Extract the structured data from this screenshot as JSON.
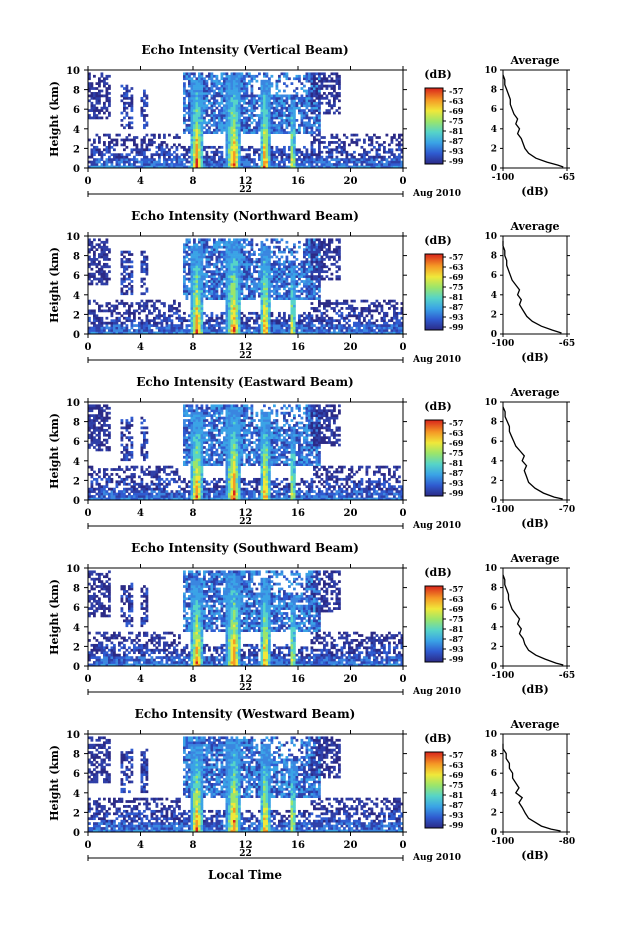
{
  "figure": {
    "xaxis_title": "Local Time",
    "date_label": "Aug 2010"
  },
  "chart_data": [
    {
      "type": "heatmap",
      "title": "Echo Intensity (Vertical Beam)",
      "ylabel": "Height (km)",
      "xlabel": "Local Time",
      "xlim": [
        0,
        24
      ],
      "ylim": [
        0,
        10
      ],
      "xticks": [
        "0",
        "4",
        "8",
        "12",
        "16",
        "20",
        "0"
      ],
      "yticks": [
        "0",
        "2",
        "4",
        "6",
        "8",
        "10"
      ],
      "day_label": "22",
      "colorbar": {
        "unit": "(dB)",
        "ticks": [
          "-57",
          "-63",
          "-69",
          "-75",
          "-81",
          "-87",
          "-93",
          "-99"
        ]
      },
      "profile": {
        "title": "Average",
        "xlabel": "(dB)",
        "xlim": [
          -100,
          -65
        ],
        "xticks": [
          "-100",
          "-65"
        ],
        "points": [
          [
            -67,
            0.1
          ],
          [
            -70,
            0.3
          ],
          [
            -76,
            0.6
          ],
          [
            -82,
            1.0
          ],
          [
            -86,
            1.5
          ],
          [
            -88,
            2.0
          ],
          [
            -89,
            2.5
          ],
          [
            -90,
            3.0
          ],
          [
            -92,
            3.5
          ],
          [
            -91,
            4.0
          ],
          [
            -93,
            4.5
          ],
          [
            -92,
            5.0
          ],
          [
            -94,
            5.5
          ],
          [
            -95,
            6.0
          ],
          [
            -96,
            6.5
          ],
          [
            -96,
            7.0
          ],
          [
            -97,
            7.5
          ],
          [
            -98,
            8.0
          ],
          [
            -99,
            8.5
          ],
          [
            -99,
            9.0
          ],
          [
            -100,
            9.5
          ]
        ]
      }
    },
    {
      "type": "heatmap",
      "title": "Echo Intensity (Northward Beam)",
      "ylabel": "Height (km)",
      "xlabel": "Local Time",
      "xlim": [
        0,
        24
      ],
      "ylim": [
        0,
        10
      ],
      "xticks": [
        "0",
        "4",
        "8",
        "12",
        "16",
        "20",
        "0"
      ],
      "yticks": [
        "0",
        "2",
        "4",
        "6",
        "8",
        "10"
      ],
      "day_label": "22",
      "colorbar": {
        "unit": "(dB)",
        "ticks": [
          "-57",
          "-63",
          "-69",
          "-75",
          "-81",
          "-87",
          "-93",
          "-99"
        ]
      },
      "profile": {
        "title": "Average",
        "xlabel": "(dB)",
        "xlim": [
          -100,
          -65
        ],
        "xticks": [
          "-100",
          "-65"
        ],
        "points": [
          [
            -68,
            0.1
          ],
          [
            -73,
            0.4
          ],
          [
            -79,
            0.8
          ],
          [
            -84,
            1.3
          ],
          [
            -87,
            1.8
          ],
          [
            -89,
            2.4
          ],
          [
            -91,
            3.0
          ],
          [
            -90,
            3.5
          ],
          [
            -92,
            4.0
          ],
          [
            -91,
            4.5
          ],
          [
            -93,
            5.0
          ],
          [
            -95,
            5.5
          ],
          [
            -96,
            6.0
          ],
          [
            -97,
            6.5
          ],
          [
            -98,
            7.0
          ],
          [
            -98,
            7.5
          ],
          [
            -99,
            8.0
          ],
          [
            -99,
            8.5
          ],
          [
            -100,
            9.0
          ],
          [
            -100,
            9.5
          ]
        ]
      }
    },
    {
      "type": "heatmap",
      "title": "Echo Intensity (Eastward Beam)",
      "ylabel": "Height (km)",
      "xlabel": "Local Time",
      "xlim": [
        0,
        24
      ],
      "ylim": [
        0,
        10
      ],
      "xticks": [
        "0",
        "4",
        "8",
        "12",
        "16",
        "20",
        "0"
      ],
      "yticks": [
        "0",
        "2",
        "4",
        "6",
        "8",
        "10"
      ],
      "day_label": "22",
      "colorbar": {
        "unit": "(dB)",
        "ticks": [
          "-57",
          "-63",
          "-69",
          "-75",
          "-81",
          "-87",
          "-93",
          "-99"
        ]
      },
      "profile": {
        "title": "Average",
        "xlabel": "(dB)",
        "xlim": [
          -100,
          -70
        ],
        "xticks": [
          "-100",
          "-70"
        ],
        "points": [
          [
            -72,
            0.1
          ],
          [
            -76,
            0.3
          ],
          [
            -81,
            0.7
          ],
          [
            -85,
            1.2
          ],
          [
            -88,
            1.8
          ],
          [
            -89,
            2.4
          ],
          [
            -90,
            3.0
          ],
          [
            -89,
            3.5
          ],
          [
            -91,
            4.0
          ],
          [
            -90,
            4.5
          ],
          [
            -92,
            5.0
          ],
          [
            -94,
            5.5
          ],
          [
            -95,
            6.0
          ],
          [
            -96,
            6.5
          ],
          [
            -97,
            7.0
          ],
          [
            -97,
            7.5
          ],
          [
            -98,
            8.0
          ],
          [
            -99,
            8.5
          ],
          [
            -99,
            9.0
          ],
          [
            -100,
            9.5
          ]
        ]
      }
    },
    {
      "type": "heatmap",
      "title": "Echo Intensity (Southward Beam)",
      "ylabel": "Height (km)",
      "xlabel": "Local Time",
      "xlim": [
        0,
        24
      ],
      "ylim": [
        0,
        10
      ],
      "xticks": [
        "0",
        "4",
        "8",
        "12",
        "16",
        "20",
        "0"
      ],
      "yticks": [
        "0",
        "2",
        "4",
        "6",
        "8",
        "10"
      ],
      "day_label": "22",
      "colorbar": {
        "unit": "(dB)",
        "ticks": [
          "-57",
          "-63",
          "-69",
          "-75",
          "-81",
          "-87",
          "-93",
          "-99"
        ]
      },
      "profile": {
        "title": "Average",
        "xlabel": "(dB)",
        "xlim": [
          -100,
          -65
        ],
        "xticks": [
          "-100",
          "-65"
        ],
        "points": [
          [
            -67,
            0.1
          ],
          [
            -71,
            0.3
          ],
          [
            -77,
            0.7
          ],
          [
            -82,
            1.1
          ],
          [
            -86,
            1.6
          ],
          [
            -88,
            2.2
          ],
          [
            -89,
            2.8
          ],
          [
            -91,
            3.3
          ],
          [
            -90,
            3.8
          ],
          [
            -92,
            4.3
          ],
          [
            -91,
            4.8
          ],
          [
            -93,
            5.3
          ],
          [
            -95,
            5.8
          ],
          [
            -96,
            6.3
          ],
          [
            -97,
            6.8
          ],
          [
            -97,
            7.3
          ],
          [
            -98,
            7.8
          ],
          [
            -99,
            8.3
          ],
          [
            -99,
            8.8
          ],
          [
            -100,
            9.3
          ]
        ]
      }
    },
    {
      "type": "heatmap",
      "title": "Echo Intensity (Westward Beam)",
      "ylabel": "Height (km)",
      "xlabel": "Local Time",
      "xlim": [
        0,
        24
      ],
      "ylim": [
        0,
        10
      ],
      "xticks": [
        "0",
        "4",
        "8",
        "12",
        "16",
        "20",
        "0"
      ],
      "yticks": [
        "0",
        "2",
        "4",
        "6",
        "8",
        "10"
      ],
      "day_label": "22",
      "colorbar": {
        "unit": "(dB)",
        "ticks": [
          "-57",
          "-63",
          "-69",
          "-75",
          "-81",
          "-87",
          "-93",
          "-99"
        ]
      },
      "profile": {
        "title": "Average",
        "xlabel": "(dB)",
        "xlim": [
          -100,
          -80
        ],
        "xticks": [
          "-100",
          "-80"
        ],
        "points": [
          [
            -82,
            0.1
          ],
          [
            -85,
            0.3
          ],
          [
            -88,
            0.6
          ],
          [
            -90,
            1.0
          ],
          [
            -92,
            1.4
          ],
          [
            -93,
            1.9
          ],
          [
            -94,
            2.5
          ],
          [
            -95,
            3.0
          ],
          [
            -94,
            3.5
          ],
          [
            -96,
            4.0
          ],
          [
            -95,
            4.5
          ],
          [
            -96,
            5.0
          ],
          [
            -97,
            5.5
          ],
          [
            -97,
            6.0
          ],
          [
            -98,
            6.5
          ],
          [
            -98,
            7.0
          ],
          [
            -99,
            7.5
          ],
          [
            -99,
            8.0
          ],
          [
            -100,
            8.5
          ],
          [
            -100,
            9.0
          ]
        ]
      }
    }
  ]
}
